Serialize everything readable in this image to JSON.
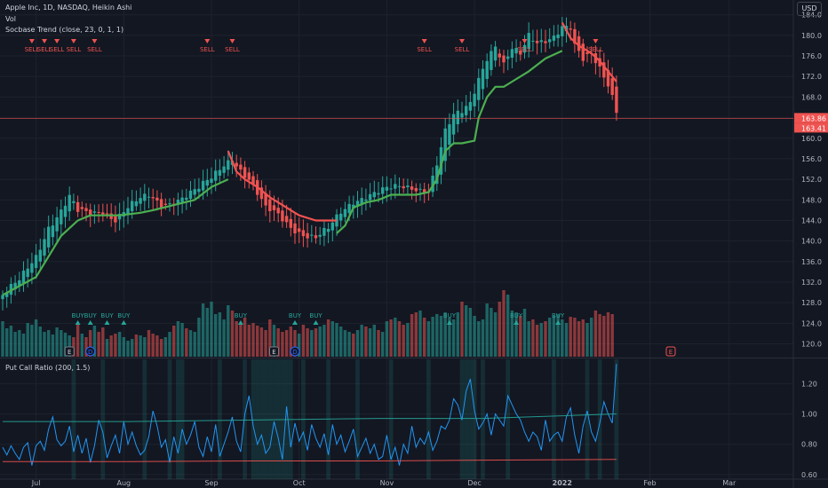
{
  "header": {
    "symbol_line": "Apple Inc, 1D, NASDAQ, Heikin Ashi",
    "vol_label": "Vol",
    "indicator_label": "Socbase Trend (close, 23, 0, 1, 1)",
    "currency": "USD"
  },
  "pc_panel": {
    "title": "Put Call Ratio (200, 1.5)"
  },
  "colors": {
    "background": "#131722",
    "up": "#26a69a",
    "down": "#ef5350",
    "trend_up": "#4caf50",
    "trend_down": "#f05350",
    "pc_line": "#2196f3",
    "pc_upper": "#26a69a",
    "pc_lower": "#ef5350",
    "price_line": "#f05350"
  },
  "chart_data": {
    "type": "candlestick",
    "price_axis": {
      "ticks": [
        120,
        124,
        128,
        132,
        136,
        140,
        144,
        148,
        152,
        156,
        160,
        164,
        168,
        172,
        176,
        180,
        184
      ],
      "range": [
        117.5,
        185.5
      ]
    },
    "x_axis_labels": [
      {
        "label": "Jul",
        "index": 8
      },
      {
        "label": "Aug",
        "index": 29
      },
      {
        "label": "Sep",
        "index": 50
      },
      {
        "label": "Oct",
        "index": 71
      },
      {
        "label": "Nov",
        "index": 92
      },
      {
        "label": "Dec",
        "index": 113
      },
      {
        "label": "2022",
        "index": 134
      },
      {
        "label": "Feb",
        "index": 155
      },
      {
        "label": "Mar",
        "index": 174
      }
    ],
    "close_anchors": [
      [
        0,
        129.5
      ],
      [
        4,
        132
      ],
      [
        8,
        137
      ],
      [
        11,
        143
      ],
      [
        14,
        146
      ],
      [
        16,
        148.5
      ],
      [
        18,
        145.5
      ],
      [
        21,
        145
      ],
      [
        24,
        146
      ],
      [
        27,
        144.5
      ],
      [
        29,
        146
      ],
      [
        32,
        147.5
      ],
      [
        35,
        148.5
      ],
      [
        38,
        147
      ],
      [
        41,
        148
      ],
      [
        44,
        149
      ],
      [
        47,
        150
      ],
      [
        50,
        152
      ],
      [
        53,
        155
      ],
      [
        55,
        156.5
      ],
      [
        57,
        154
      ],
      [
        59,
        152
      ],
      [
        61,
        149
      ],
      [
        63,
        146
      ],
      [
        66,
        145
      ],
      [
        69,
        143
      ],
      [
        72,
        141.5
      ],
      [
        75,
        140.5
      ],
      [
        78,
        142
      ],
      [
        81,
        145.5
      ],
      [
        84,
        148
      ],
      [
        87,
        149
      ],
      [
        90,
        149.5
      ],
      [
        93,
        150
      ],
      [
        96,
        150.5
      ],
      [
        99,
        150.5
      ],
      [
        102,
        150
      ],
      [
        104,
        155
      ],
      [
        106,
        161
      ],
      [
        108,
        164
      ],
      [
        110,
        165
      ],
      [
        112,
        167
      ],
      [
        114,
        172
      ],
      [
        116,
        176
      ],
      [
        118,
        178
      ],
      [
        120,
        174
      ],
      [
        122,
        177
      ],
      [
        124,
        176
      ],
      [
        126,
        180
      ],
      [
        128,
        179
      ],
      [
        130,
        179.5
      ],
      [
        132,
        180
      ],
      [
        134,
        181.5
      ],
      [
        136,
        181
      ],
      [
        137,
        177.5
      ],
      [
        139,
        175
      ],
      [
        141,
        176.5
      ],
      [
        143,
        174
      ],
      [
        145,
        171
      ],
      [
        146,
        168.5
      ],
      [
        147,
        165.5
      ]
    ],
    "last_price": "163.86",
    "last_price_2": "163.41",
    "trend_segments": [
      {
        "dir": "up",
        "points": [
          [
            0,
            129.5
          ],
          [
            8,
            133
          ],
          [
            14,
            141
          ],
          [
            18,
            144
          ],
          [
            21,
            145
          ],
          [
            28,
            145
          ],
          [
            33,
            145.5
          ],
          [
            36,
            146
          ],
          [
            41,
            147
          ],
          [
            46,
            148
          ],
          [
            50,
            150.5
          ],
          [
            54,
            152
          ]
        ]
      },
      {
        "dir": "down",
        "points": [
          [
            54,
            157.5
          ],
          [
            56,
            153.5
          ],
          [
            58,
            152
          ],
          [
            61,
            150.5
          ],
          [
            64,
            148.5
          ],
          [
            67,
            147
          ],
          [
            69,
            146
          ],
          [
            71,
            145
          ],
          [
            75,
            144
          ],
          [
            80,
            144
          ]
        ]
      },
      {
        "dir": "up",
        "points": [
          [
            80,
            141.5
          ],
          [
            82,
            143
          ],
          [
            84,
            146.5
          ],
          [
            87,
            147.5
          ],
          [
            90,
            148
          ],
          [
            93,
            149
          ],
          [
            96,
            149
          ],
          [
            99,
            149
          ],
          [
            102,
            149.5
          ],
          [
            104,
            152
          ],
          [
            106,
            157.5
          ],
          [
            108,
            159
          ],
          [
            110,
            159
          ],
          [
            113,
            159.5
          ],
          [
            114,
            164
          ],
          [
            116,
            168
          ],
          [
            118,
            170
          ],
          [
            120,
            170
          ],
          [
            122,
            171
          ],
          [
            126,
            173
          ],
          [
            130,
            175.5
          ],
          [
            134,
            177
          ]
        ]
      },
      {
        "dir": "down",
        "points": [
          [
            134,
            182.5
          ],
          [
            136,
            179.5
          ],
          [
            138,
            178
          ],
          [
            141,
            176.5
          ],
          [
            143,
            175
          ],
          [
            145,
            173
          ],
          [
            147,
            171
          ]
        ]
      }
    ],
    "sell_signals": [
      {
        "label": "SELL",
        "index": 7
      },
      {
        "label": "SELL",
        "index": 10
      },
      {
        "label": "SELL",
        "index": 13
      },
      {
        "label": "SELL",
        "index": 17
      },
      {
        "label": "SELL",
        "index": 22
      },
      {
        "label": "SELL",
        "index": 49
      },
      {
        "label": "SELL",
        "index": 55
      },
      {
        "label": "SELL",
        "index": 101
      },
      {
        "label": "SELL",
        "index": 110
      },
      {
        "label": "SELL",
        "index": 125
      },
      {
        "label": "SELL",
        "index": 142
      }
    ],
    "buy_signals": [
      {
        "label": "BUY",
        "index": 18
      },
      {
        "label": "BUY",
        "index": 21
      },
      {
        "label": "BUY",
        "index": 25
      },
      {
        "label": "BUY",
        "index": 29
      },
      {
        "label": "BUY",
        "index": 57
      },
      {
        "label": "BUY",
        "index": 70
      },
      {
        "label": "BUY",
        "index": 75
      },
      {
        "label": "BUY",
        "index": 107
      },
      {
        "label": "BUY",
        "index": 123
      },
      {
        "label": "BUY",
        "index": 133
      }
    ],
    "events": [
      {
        "label": "E",
        "index": 16
      },
      {
        "label": "D",
        "index": 21
      },
      {
        "label": "E",
        "index": 65
      },
      {
        "label": "D",
        "index": 70
      },
      {
        "label": "E",
        "index": 160
      }
    ],
    "volume": [
      40,
      32,
      35,
      28,
      30,
      26,
      38,
      36,
      42,
      34,
      28,
      30,
      25,
      33,
      30,
      27,
      24,
      22,
      38,
      26,
      22,
      30,
      35,
      28,
      33,
      20,
      24,
      26,
      28,
      22,
      18,
      20,
      25,
      24,
      22,
      30,
      26,
      24,
      20,
      22,
      28,
      35,
      40,
      38,
      32,
      30,
      28,
      44,
      60,
      55,
      62,
      48,
      50,
      42,
      58,
      52,
      40,
      38,
      44,
      36,
      38,
      35,
      33,
      30,
      42,
      36,
      32,
      28,
      30,
      34,
      30,
      26,
      36,
      32,
      30,
      32,
      34,
      36,
      42,
      40,
      38,
      34,
      30,
      28,
      26,
      30,
      36,
      34,
      32,
      36,
      30,
      28,
      40,
      42,
      44,
      40,
      36,
      38,
      48,
      50,
      52,
      44,
      40,
      45,
      48,
      46,
      50,
      44,
      42,
      50,
      62,
      58,
      55,
      46,
      40,
      42,
      60,
      55,
      50,
      62,
      75,
      70,
      52,
      50,
      46,
      54,
      40,
      42,
      36,
      38,
      40,
      44,
      46,
      48,
      42,
      38,
      45,
      44,
      40,
      42,
      38,
      44,
      52,
      48,
      46,
      50,
      48
    ],
    "pc_ratio": [
      0.78,
      0.73,
      0.79,
      0.74,
      0.7,
      0.78,
      0.81,
      0.66,
      0.79,
      0.82,
      0.76,
      0.9,
      0.98,
      0.83,
      0.79,
      0.82,
      0.92,
      0.75,
      0.86,
      0.74,
      0.84,
      0.68,
      0.79,
      0.96,
      0.88,
      0.71,
      0.79,
      0.86,
      0.74,
      0.95,
      0.8,
      0.88,
      0.79,
      0.73,
      0.76,
      0.85,
      1.02,
      0.92,
      0.78,
      0.83,
      0.68,
      0.85,
      0.74,
      0.9,
      0.8,
      0.86,
      0.95,
      0.78,
      0.72,
      0.85,
      0.75,
      0.93,
      0.72,
      0.8,
      0.88,
      0.98,
      0.82,
      0.75,
      1.0,
      1.12,
      0.92,
      0.8,
      0.86,
      0.74,
      0.78,
      0.95,
      0.84,
      0.7,
      1.05,
      0.78,
      0.94,
      0.82,
      0.88,
      0.76,
      0.93,
      0.84,
      0.78,
      0.87,
      0.73,
      0.93,
      0.8,
      0.86,
      0.75,
      0.82,
      0.9,
      0.72,
      0.78,
      0.84,
      0.74,
      0.8,
      0.7,
      0.72,
      0.86,
      0.7,
      0.78,
      0.66,
      0.8,
      0.74,
      0.92,
      0.78,
      0.84,
      0.8,
      0.88,
      0.76,
      0.82,
      0.92,
      0.9,
      0.96,
      1.1,
      1.06,
      0.96,
      1.15,
      1.23,
      1.02,
      0.9,
      0.94,
      1.0,
      0.86,
      1.0,
      0.96,
      0.92,
      1.12,
      1.06,
      1.0,
      0.96,
      0.88,
      0.82,
      0.88,
      0.85,
      0.76,
      0.96,
      0.82,
      0.86,
      0.88,
      0.82,
      0.98,
      1.04,
      0.86,
      0.74,
      0.92,
      1.02,
      0.88,
      0.82,
      0.94,
      1.08,
      1.0,
      0.94,
      1.33
    ],
    "pc_upper": [
      [
        0,
        0.95
      ],
      [
        30,
        0.95
      ],
      [
        60,
        0.96
      ],
      [
        90,
        0.97
      ],
      [
        115,
        0.97
      ],
      [
        147,
        1.0
      ]
    ],
    "pc_lower": [
      [
        0,
        0.685
      ],
      [
        30,
        0.685
      ],
      [
        60,
        0.69
      ],
      [
        90,
        0.69
      ],
      [
        115,
        0.695
      ],
      [
        147,
        0.7
      ]
    ],
    "pc_highlights": [
      17,
      24,
      34,
      40,
      42,
      43,
      52,
      58,
      60,
      61,
      62,
      63,
      64,
      65,
      66,
      67,
      68,
      69,
      72,
      78,
      85,
      93,
      102,
      110,
      111,
      112,
      113,
      115,
      121,
      132,
      140,
      143,
      147
    ],
    "pc_axis": {
      "ticks": [
        "1.20",
        "1.00",
        "0.80",
        "0.60"
      ],
      "values": [
        1.2,
        1.0,
        0.8,
        0.6
      ],
      "range": [
        0.57,
        1.36
      ]
    }
  }
}
